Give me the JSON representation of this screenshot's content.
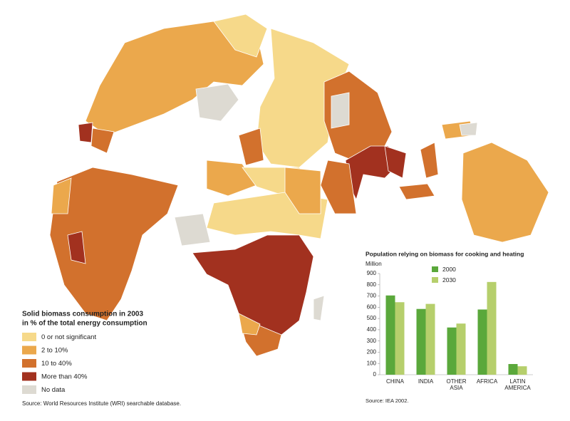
{
  "map": {
    "legend_title": [
      "Solid biomass consumption in 2003",
      "in % of the total energy consumption"
    ],
    "legend": [
      {
        "label": "0 or not significant",
        "color": "#f6d98a"
      },
      {
        "label": "2 to 10%",
        "color": "#eba84c"
      },
      {
        "label": "10 to 40%",
        "color": "#d2712d"
      },
      {
        "label": "More than 40%",
        "color": "#a2311f"
      },
      {
        "label": "No data",
        "color": "#dddad2"
      }
    ],
    "source": "Source: World Resources Institute (WRI) searchable database."
  },
  "chart_data": {
    "type": "bar",
    "title": "Population relying on biomass for cooking and heating",
    "y_label": "Million",
    "categories": [
      "CHINA",
      "INDIA",
      "OTHER\nASIA",
      "AFRICA",
      "LATIN\nAMERICA"
    ],
    "series": [
      {
        "name": "2000",
        "color": "#5aa83b",
        "values": [
          705,
          585,
          420,
          580,
          95
        ]
      },
      {
        "name": "2030",
        "color": "#b6cf6c",
        "values": [
          645,
          630,
          455,
          825,
          75
        ]
      }
    ],
    "ylim": [
      0,
      900
    ],
    "yticks": [
      0,
      100,
      200,
      300,
      400,
      500,
      600,
      700,
      800,
      900
    ],
    "source": "Source: IEA 2002."
  }
}
